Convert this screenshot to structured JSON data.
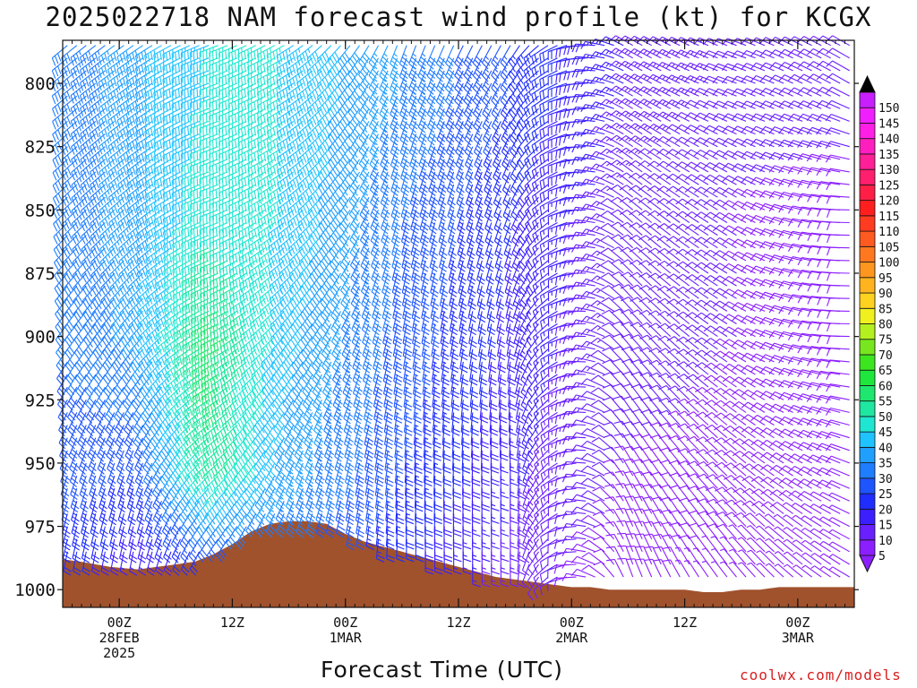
{
  "page": {
    "title": "2025022718 NAM forecast wind profile (kt) for KCGX",
    "xlabel": "Forecast Time (UTC)",
    "credit": "coolwx.com/models"
  },
  "chart_data": {
    "type": "wind-barb-profile",
    "title": "2025022718 NAM forecast wind profile (kt) for KCGX",
    "xlabel": "Forecast Time (UTC)",
    "ylabel": "",
    "x_unit": "forecast hour from 2025-02-27 18Z",
    "xlim": [
      0,
      84
    ],
    "ylim_hpa": [
      783,
      1007
    ],
    "y_inverted": true,
    "x_ticks": [
      {
        "hour": 6,
        "labels": [
          "00Z",
          "28FEB",
          "2025"
        ]
      },
      {
        "hour": 18,
        "labels": [
          "12Z"
        ]
      },
      {
        "hour": 30,
        "labels": [
          "00Z",
          "1MAR"
        ]
      },
      {
        "hour": 42,
        "labels": [
          "12Z"
        ]
      },
      {
        "hour": 54,
        "labels": [
          "00Z",
          "2MAR"
        ]
      },
      {
        "hour": 66,
        "labels": [
          "12Z"
        ]
      },
      {
        "hour": 78,
        "labels": [
          "00Z",
          "3MAR"
        ]
      }
    ],
    "y_ticks": [
      800,
      825,
      850,
      875,
      900,
      925,
      950,
      975,
      1000
    ],
    "terrain_color": "#a0522d",
    "terrain_surface_pressure": {
      "hours": [
        0,
        2,
        5,
        8,
        10,
        12,
        14,
        16,
        18,
        20,
        22,
        24,
        26,
        28,
        30,
        32,
        34,
        36,
        38,
        40,
        42,
        44,
        46,
        48,
        50,
        52,
        54,
        56,
        58,
        60,
        62,
        64,
        66,
        68,
        70,
        72,
        74,
        76,
        78,
        80,
        82,
        84
      ],
      "hpa": [
        988,
        989,
        991,
        992,
        991,
        990,
        989,
        986,
        982,
        977,
        974,
        973,
        973,
        974,
        978,
        981,
        983,
        985,
        987,
        989,
        991,
        993,
        995,
        996,
        997,
        998,
        999,
        999,
        1000,
        1000,
        1000,
        1000,
        1000,
        1001,
        1001,
        1000,
        1000,
        999,
        999,
        999,
        999,
        999
      ]
    },
    "wind_speed_colorbar": {
      "unit": "kt",
      "levels": [
        5,
        10,
        15,
        20,
        25,
        30,
        35,
        40,
        45,
        50,
        55,
        60,
        65,
        70,
        75,
        80,
        85,
        90,
        95,
        100,
        105,
        110,
        115,
        120,
        125,
        130,
        135,
        140,
        145,
        150
      ],
      "colors": [
        "#8c1fff",
        "#6a1fff",
        "#3c1fff",
        "#1f2dff",
        "#1f55ff",
        "#1f7dff",
        "#1fa0ff",
        "#1fc3ff",
        "#1fe6d2",
        "#1fe6a0",
        "#1fe66e",
        "#1fe63c",
        "#3ce61f",
        "#78e61f",
        "#b4f01f",
        "#f0f01f",
        "#ffd21f",
        "#ffb41f",
        "#ff961f",
        "#ff781f",
        "#ff5a1f",
        "#ff3c1f",
        "#ff1f1f",
        "#ff1f46",
        "#ff1f6e",
        "#ff1f96",
        "#ff1fbe",
        "#ff1fe6",
        "#f01fff",
        "#c81fff"
      ],
      "over_color": "#000000",
      "under_color": "#8c1fff"
    },
    "barb_grid": {
      "hour_step": 1,
      "hpa_step": 5,
      "hpa_top": 785
    },
    "wind_field_keyframes": [
      {
        "hour": 0,
        "speeds": {
          "800": 30,
          "850": 30,
          "900": 30,
          "950": 28,
          "990": 22
        },
        "dir_deg": {
          "800": 230,
          "850": 225,
          "900": 215,
          "950": 200,
          "990": 190
        }
      },
      {
        "hour": 8,
        "speeds": {
          "800": 38,
          "850": 38,
          "900": 36,
          "950": 25,
          "990": 15
        },
        "dir_deg": {
          "800": 235,
          "850": 230,
          "900": 220,
          "950": 200,
          "990": 190
        }
      },
      {
        "hour": 16,
        "speeds": {
          "800": 45,
          "850": 48,
          "900": 58,
          "950": 55,
          "990": 20
        },
        "dir_deg": {
          "800": 250,
          "850": 250,
          "900": 245,
          "950": 230,
          "990": 210
        }
      },
      {
        "hour": 24,
        "speeds": {
          "800": 45,
          "850": 45,
          "900": 42,
          "950": 38,
          "990": 28
        },
        "dir_deg": {
          "800": 240,
          "850": 235,
          "900": 220,
          "950": 205,
          "990": 200
        }
      },
      {
        "hour": 36,
        "speeds": {
          "800": 35,
          "850": 30,
          "900": 28,
          "950": 25,
          "990": 20
        },
        "dir_deg": {
          "800": 200,
          "850": 195,
          "900": 190,
          "950": 185,
          "990": 180
        }
      },
      {
        "hour": 48,
        "speeds": {
          "800": 25,
          "850": 20,
          "900": 18,
          "950": 16,
          "990": 12
        },
        "dir_deg": {
          "800": 210,
          "850": 200,
          "900": 190,
          "950": 180,
          "990": 180
        }
      },
      {
        "hour": 60,
        "speeds": {
          "800": 15,
          "850": 12,
          "900": 12,
          "950": 10,
          "990": 8
        },
        "dir_deg": {
          "800": 300,
          "850": 310,
          "900": 320,
          "950": 330,
          "990": 340
        }
      },
      {
        "hour": 72,
        "speeds": {
          "800": 12,
          "850": 10,
          "900": 10,
          "950": 9,
          "990": 7
        },
        "dir_deg": {
          "800": 290,
          "850": 300,
          "900": 300,
          "950": 310,
          "990": 320
        }
      },
      {
        "hour": 84,
        "speeds": {
          "800": 12,
          "850": 8,
          "900": 8,
          "950": 8,
          "990": 6
        },
        "dir_deg": {
          "800": 300,
          "850": 270,
          "900": 270,
          "950": 290,
          "990": 300
        }
      }
    ]
  }
}
